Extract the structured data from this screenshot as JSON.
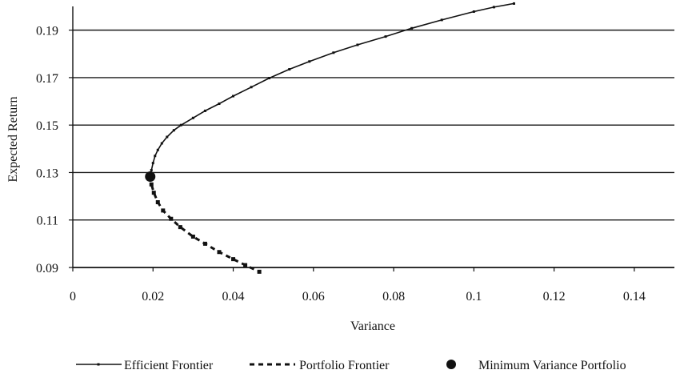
{
  "colors": {
    "line": "#111111",
    "grid": "#1a1a1a",
    "background": "#ffffff"
  },
  "chart_data": {
    "type": "line",
    "title": "",
    "xlabel": "Variance",
    "ylabel": "Expected Return",
    "xlim": [
      0,
      0.15
    ],
    "ylim": [
      0.09,
      0.2
    ],
    "grid": {
      "horizontal": true,
      "vertical": false
    },
    "x_ticks": [
      {
        "value": 0,
        "label": "0"
      },
      {
        "value": 0.02,
        "label": "0.02"
      },
      {
        "value": 0.04,
        "label": "0.04"
      },
      {
        "value": 0.06,
        "label": "0.06"
      },
      {
        "value": 0.08,
        "label": "0.08"
      },
      {
        "value": 0.1,
        "label": "0.1"
      },
      {
        "value": 0.12,
        "label": "0.12"
      },
      {
        "value": 0.14,
        "label": "0.14"
      }
    ],
    "y_ticks": [
      {
        "value": 0.09,
        "label": "0.09"
      },
      {
        "value": 0.11,
        "label": "0.11"
      },
      {
        "value": 0.13,
        "label": "0.13"
      },
      {
        "value": 0.15,
        "label": "0.15"
      },
      {
        "value": 0.17,
        "label": "0.17"
      },
      {
        "value": 0.19,
        "label": "0.19"
      }
    ],
    "legend_position": "bottom",
    "series": [
      {
        "name": "Efficient Frontier",
        "style": "solid-with-markers",
        "x": [
          0.0193,
          0.0196,
          0.02,
          0.0205,
          0.0212,
          0.0222,
          0.0235,
          0.0252,
          0.027,
          0.03,
          0.033,
          0.0365,
          0.04,
          0.0445,
          0.049,
          0.054,
          0.059,
          0.065,
          0.071,
          0.078,
          0.0845,
          0.092,
          0.1,
          0.105,
          0.11
        ],
        "y": [
          0.1283,
          0.131,
          0.134,
          0.137,
          0.1395,
          0.1423,
          0.145,
          0.1478,
          0.15,
          0.153,
          0.156,
          0.159,
          0.1622,
          0.166,
          0.1698,
          0.1735,
          0.1768,
          0.1805,
          0.1838,
          0.1873,
          0.1908,
          0.1943,
          0.1978,
          0.1997,
          0.2012
        ]
      },
      {
        "name": "Portfolio Frontier",
        "style": "dashed-with-markers",
        "x": [
          0.0193,
          0.0196,
          0.0202,
          0.0212,
          0.0225,
          0.0245,
          0.0268,
          0.03,
          0.033,
          0.0365,
          0.04,
          0.043,
          0.0465
        ],
        "y": [
          0.1283,
          0.125,
          0.1215,
          0.1175,
          0.114,
          0.1105,
          0.107,
          0.103,
          0.1,
          0.0965,
          0.0935,
          0.091,
          0.0882
        ]
      }
    ],
    "markers": [
      {
        "name": "Minimum Variance Portfolio",
        "x": 0.0193,
        "y": 0.1283
      }
    ]
  }
}
